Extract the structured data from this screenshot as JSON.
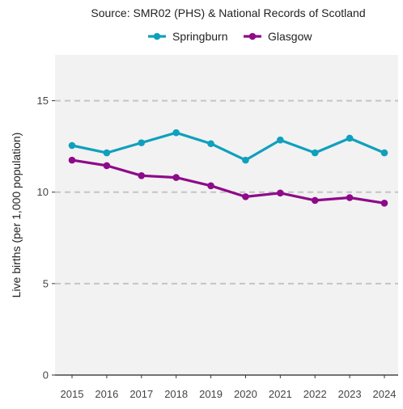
{
  "chart_data": {
    "type": "line",
    "caption": "Source: SMR02 (PHS) & National Records of Scotland",
    "ylabel": "Live births (per 1,000 population)",
    "xlabel": "",
    "ylim": [
      0,
      17.5
    ],
    "y_ticks": [
      0,
      5,
      10,
      15
    ],
    "x": [
      2015,
      2016,
      2017,
      2018,
      2019,
      2020,
      2021,
      2022,
      2023,
      2024
    ],
    "x_labels": [
      "2015",
      "2016",
      "2017",
      "2018",
      "2019",
      "2020",
      "2021",
      "2022",
      "2023",
      "2024"
    ],
    "grid": "horizontal dashed at major ticks",
    "legend_position": "top",
    "panel_background": "#f2f2f2",
    "series": [
      {
        "name": "Springburn",
        "color": "#0fa0bd",
        "values": [
          12.55,
          12.15,
          12.7,
          13.25,
          12.65,
          11.75,
          12.85,
          12.15,
          12.95,
          12.15
        ]
      },
      {
        "name": "Glasgow",
        "color": "#8e0a8a",
        "values": [
          11.75,
          11.45,
          10.9,
          10.8,
          10.35,
          9.75,
          9.95,
          9.55,
          9.7,
          9.4
        ]
      }
    ]
  }
}
